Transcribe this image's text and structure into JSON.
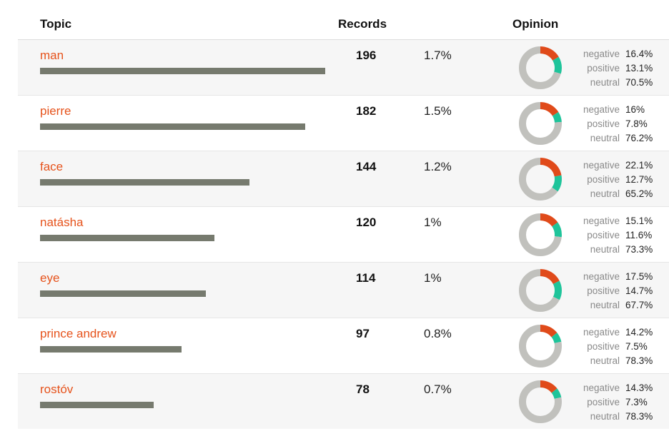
{
  "header": {
    "topic": "Topic",
    "records": "Records",
    "opinion": "Opinion"
  },
  "labels": {
    "negative": "negative",
    "positive": "positive",
    "neutral": "neutral"
  },
  "colors": {
    "topic": "#e6531c",
    "bar": "#767a6e",
    "negative": "#e04a1a",
    "positive": "#1ec49a",
    "neutral": "#c1c1bd"
  },
  "chart_data": {
    "type": "table",
    "columns": [
      "Topic",
      "Records",
      "Opinion"
    ],
    "rows": [
      {
        "topic": "man",
        "records": 196,
        "percent": "1.7%",
        "negative": "16.4%",
        "positive": "13.1%",
        "neutral": "70.5%"
      },
      {
        "topic": "pierre",
        "records": 182,
        "percent": "1.5%",
        "negative": "16%",
        "positive": "7.8%",
        "neutral": "76.2%"
      },
      {
        "topic": "face",
        "records": 144,
        "percent": "1.2%",
        "negative": "22.1%",
        "positive": "12.7%",
        "neutral": "65.2%"
      },
      {
        "topic": "natásha",
        "records": 120,
        "percent": "1%",
        "negative": "15.1%",
        "positive": "11.6%",
        "neutral": "73.3%"
      },
      {
        "topic": "eye",
        "records": 114,
        "percent": "1%",
        "negative": "17.5%",
        "positive": "14.7%",
        "neutral": "67.7%"
      },
      {
        "topic": "prince andrew",
        "records": 97,
        "percent": "0.8%",
        "negative": "14.2%",
        "positive": "7.5%",
        "neutral": "78.3%"
      },
      {
        "topic": "rostóv",
        "records": 78,
        "percent": "0.7%",
        "negative": "14.3%",
        "positive": "7.3%",
        "neutral": "78.3%"
      }
    ]
  }
}
